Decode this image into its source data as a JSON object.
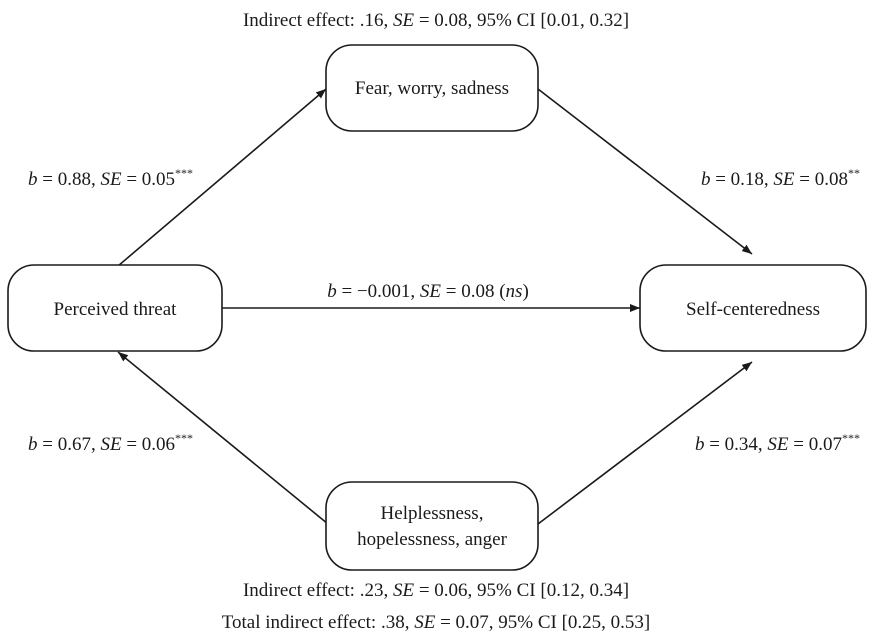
{
  "nodes": {
    "perceived_threat": {
      "label": "Perceived threat"
    },
    "fear": {
      "label": "Fear, worry, sadness"
    },
    "self_centeredness": {
      "label": "Self-centeredness"
    },
    "helplessness": {
      "line1": "Helplessness,",
      "line2": "hopelessness, anger"
    }
  },
  "paths": {
    "threat_to_fear": {
      "b_sym": "b",
      "b_val": " = 0.88, ",
      "se_sym": "SE",
      "se_val": " = 0.05",
      "sig": "***"
    },
    "fear_to_self": {
      "b_sym": "b",
      "b_val": " = 0.18, ",
      "se_sym": "SE",
      "se_val": " = 0.08",
      "sig": "**"
    },
    "threat_to_self": {
      "b_sym": "b",
      "b_val": " = −0.001, ",
      "se_sym": "SE",
      "se_val": " = 0.08 (",
      "ns": "ns",
      "close": ")"
    },
    "help_to_threat": {
      "b_sym": "b",
      "b_val": " = 0.67, ",
      "se_sym": "SE",
      "se_val": " = 0.06",
      "sig": "***"
    },
    "help_to_self": {
      "b_sym": "b",
      "b_val": " = 0.34, ",
      "se_sym": "SE",
      "se_val": " = 0.07",
      "sig": "***"
    }
  },
  "captions": {
    "indirect_top": {
      "prefix": "Indirect effect: .16, ",
      "se_sym": "SE",
      "suffix": " = 0.08, 95% CI [0.01, 0.32]"
    },
    "indirect_bottom": {
      "prefix": "Indirect effect: .23, ",
      "se_sym": "SE",
      "suffix": " = 0.06, 95% CI [0.12, 0.34]"
    },
    "total_indirect": {
      "prefix": "Total indirect effect: .38, ",
      "se_sym": "SE",
      "suffix": " = 0.07, 95% CI [0.25, 0.53]"
    }
  }
}
